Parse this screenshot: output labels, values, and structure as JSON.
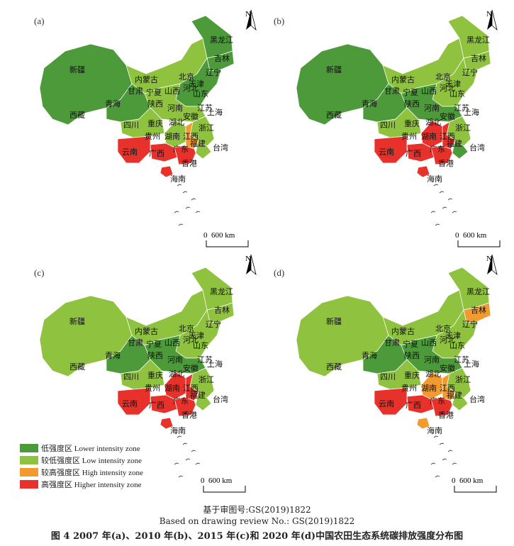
{
  "legend": [
    {
      "label": "低强度区 Lower intensity zone",
      "color": "#4c9a3a"
    },
    {
      "label": "较低强度区 Low intensity zone",
      "color": "#8fc23f"
    },
    {
      "label": "较高强度区 High intensity zone",
      "color": "#f29a2e"
    },
    {
      "label": "高强度区 Higher intensity zone",
      "color": "#e8312a"
    }
  ],
  "panels": [
    {
      "tag": "(a)"
    },
    {
      "tag": "(b)"
    },
    {
      "tag": "(c)"
    },
    {
      "tag": "(d)"
    }
  ],
  "north_label": "N",
  "scale_zero": "0",
  "scale_label": "600 km",
  "review_cn": "基于审图号:GS(2019)1822",
  "review_en": "Based on drawing review No.: GS(2019)1822",
  "caption": "图 4   2007 年(a)、2010 年(b)、2015 年(c)和 2020 年(d)中国农田生态系统碳排放强度分布图",
  "province_labels": {
    "heilongjiang": "黑龙江",
    "jilin": "吉林",
    "liaoning": "辽宁",
    "neimenggu": "内蒙古",
    "beijing": "北京",
    "tianjin": "天津",
    "hebei": "河北",
    "shanxi": "山西",
    "shandong": "山东",
    "xinjiang": "新疆",
    "xizang": "西藏",
    "qinghai": "青海",
    "gansu": "甘肃",
    "ningxia": "宁夏",
    "shaanxi": "陕西",
    "henan": "河南",
    "jiangsu": "江苏",
    "anhui": "安徽",
    "shanghai": "上海",
    "sichuan": "四川",
    "chongqing": "重庆",
    "hubei": "湖北",
    "zhejiang": "浙江",
    "guizhou": "贵州",
    "hunan": "湖南",
    "jiangxi": "江西",
    "fujian": "福建",
    "yunnan": "云南",
    "guangxi": "广西",
    "guangdong": "广东",
    "taiwan": "台湾",
    "hainan": "海南",
    "hongkong": "香港"
  },
  "region_classes": {
    "a": {
      "west": "low",
      "north": "low",
      "qinghai": "low",
      "central": "lowish",
      "nemo": "lowish",
      "sichuan": "lowish",
      "hunan": "lowish",
      "jiangxi": "high",
      "southeast": "lowish",
      "fujian": "lowish",
      "yunnan": "higher",
      "guangxi": "higher",
      "guangdong": "higher",
      "hainan": "higher",
      "jilin": "low",
      "hlj": "low"
    },
    "b": {
      "west": "low",
      "north": "lowish",
      "qinghai": "low",
      "central": "low",
      "nemo": "lowish",
      "sichuan": "lowish",
      "hunan": "higher",
      "jiangxi": "higher",
      "southeast": "lowish",
      "fujian": "low",
      "yunnan": "higher",
      "guangxi": "higher",
      "guangdong": "higher",
      "hainan": "higher",
      "jilin": "lowish",
      "hlj": "lowish"
    },
    "c": {
      "west": "lowish",
      "north": "lowish",
      "qinghai": "low",
      "central": "low",
      "nemo": "lowish",
      "sichuan": "lowish",
      "hunan": "higher",
      "jiangxi": "higher",
      "southeast": "lowish",
      "fujian": "lowish",
      "yunnan": "higher",
      "guangxi": "higher",
      "guangdong": "higher",
      "hainan": "higher",
      "jilin": "lowish",
      "hlj": "lowish"
    },
    "d": {
      "west": "lowish",
      "north": "lowish",
      "qinghai": "low",
      "central": "low",
      "nemo": "lowish",
      "sichuan": "lowish",
      "hunan": "high",
      "jiangxi": "high",
      "southeast": "lowish",
      "fujian": "lowish",
      "yunnan": "higher",
      "guangxi": "higher",
      "guangdong": "higher",
      "hainan": "high",
      "jilin": "high",
      "hlj": "lowish"
    }
  }
}
